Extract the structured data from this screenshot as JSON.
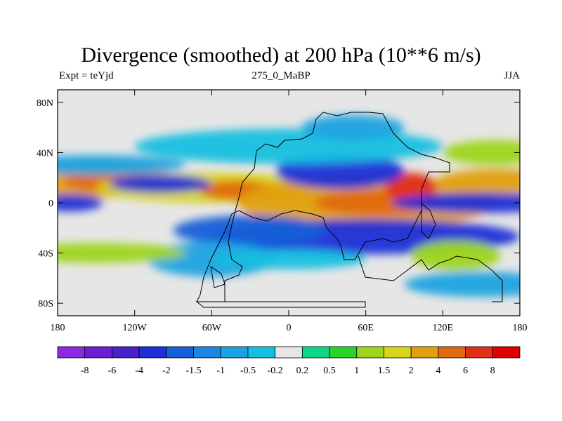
{
  "chart_data": {
    "type": "heatmap",
    "title": "Divergence (smoothed) at 200 hPa (10**6 m/s)",
    "left_label": "Expt = teYjd",
    "center_label": "275_0_MaBP",
    "right_label": "JJA",
    "x_ticks": [
      "180",
      "120W",
      "60W",
      "0",
      "60E",
      "120E",
      "180"
    ],
    "y_ticks": [
      "80N",
      "40N",
      "0",
      "40S",
      "80S"
    ],
    "x_range": [
      -180,
      180
    ],
    "y_range": [
      -90,
      90
    ],
    "colorbar_labels": [
      "-8",
      "-6",
      "-4",
      "-2",
      "-1.5",
      "-1",
      "-0.5",
      "-0.2",
      "0.2",
      "0.5",
      "1",
      "1.5",
      "2",
      "4",
      "6",
      "8"
    ],
    "colorbar_colors": [
      "#8a2be2",
      "#6a1fd0",
      "#4a20c8",
      "#1e2fd6",
      "#1560d8",
      "#1d86e0",
      "#1aa3e0",
      "#16bfe0",
      "#e6e6e6",
      "#10d68c",
      "#2ad22a",
      "#9ed51a",
      "#d6d51a",
      "#e0a010",
      "#e06a10",
      "#e03018",
      "#e00000"
    ],
    "blobs": [
      {
        "lon": -150,
        "lat": 18,
        "w": 60,
        "h": 14,
        "v": 2
      },
      {
        "lon": -140,
        "lat": 18,
        "w": 35,
        "h": 9,
        "v": 4
      },
      {
        "lon": -60,
        "lat": 12,
        "w": 90,
        "h": 12,
        "v": 1.5
      },
      {
        "lon": -40,
        "lat": 10,
        "w": 30,
        "h": 8,
        "v": 4
      },
      {
        "lon": 60,
        "lat": 0,
        "w": 100,
        "h": 22,
        "v": 2
      },
      {
        "lon": 70,
        "lat": 0,
        "w": 50,
        "h": 10,
        "v": 4
      },
      {
        "lon": 95,
        "lat": 12,
        "w": 20,
        "h": 12,
        "v": 6
      },
      {
        "lon": 160,
        "lat": 17,
        "w": 45,
        "h": 10,
        "v": 2
      },
      {
        "lon": -170,
        "lat": 0,
        "w": 25,
        "h": 7,
        "v": -4
      },
      {
        "lon": 150,
        "lat": 0,
        "w": 70,
        "h": 8,
        "v": -4
      },
      {
        "lon": -100,
        "lat": 15,
        "w": 40,
        "h": 7,
        "v": -4
      },
      {
        "lon": 60,
        "lat": -27,
        "w": 120,
        "h": 14,
        "v": -4
      },
      {
        "lon": -30,
        "lat": -22,
        "w": 60,
        "h": 12,
        "v": -2
      },
      {
        "lon": 40,
        "lat": 25,
        "w": 50,
        "h": 14,
        "v": -4
      },
      {
        "lon": -150,
        "lat": 30,
        "w": 70,
        "h": 8,
        "v": -1
      },
      {
        "lon": 0,
        "lat": 45,
        "w": 120,
        "h": 14,
        "v": -0.5
      },
      {
        "lon": 160,
        "lat": 40,
        "w": 40,
        "h": 10,
        "v": 1
      },
      {
        "lon": 130,
        "lat": -42,
        "w": 35,
        "h": 12,
        "v": 1
      },
      {
        "lon": -60,
        "lat": -45,
        "w": 50,
        "h": 14,
        "v": -1
      },
      {
        "lon": 150,
        "lat": -65,
        "w": 60,
        "h": 10,
        "v": -1
      },
      {
        "lon": -150,
        "lat": -40,
        "w": 70,
        "h": 8,
        "v": 1
      },
      {
        "lon": 0,
        "lat": -45,
        "w": 60,
        "h": 8,
        "v": -0.5
      },
      {
        "lon": 50,
        "lat": 60,
        "w": 40,
        "h": 10,
        "v": -1
      }
    ]
  }
}
